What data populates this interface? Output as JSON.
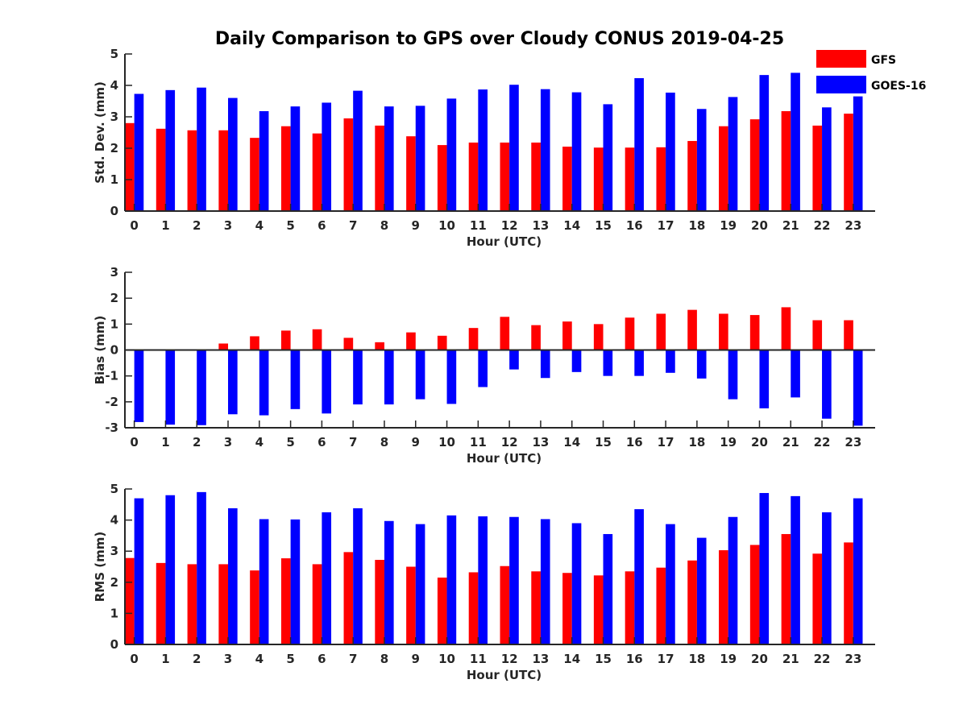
{
  "title": "Daily Comparison to GPS over Cloudy CONUS 2019-04-25",
  "colors": {
    "gfs": "#ff0000",
    "goes": "#0000ff",
    "axis": "#262626"
  },
  "legend": {
    "placement": "top-right",
    "entries": [
      "GFS",
      "GOES-16"
    ]
  },
  "chart_data": [
    {
      "type": "bar",
      "xlabel": "Hour (UTC)",
      "ylabel": "Std. Dev. (mm)",
      "ylim": [
        0,
        5
      ],
      "yticks": [
        0,
        1,
        2,
        3,
        4,
        5
      ],
      "categories": [
        "0",
        "1",
        "2",
        "3",
        "4",
        "5",
        "6",
        "7",
        "8",
        "9",
        "10",
        "11",
        "12",
        "13",
        "14",
        "15",
        "16",
        "17",
        "18",
        "19",
        "20",
        "21",
        "22",
        "23"
      ],
      "series": [
        {
          "name": "GFS",
          "values": [
            2.8,
            2.62,
            2.57,
            2.57,
            2.33,
            2.7,
            2.47,
            2.95,
            2.72,
            2.38,
            2.1,
            2.18,
            2.18,
            2.18,
            2.05,
            2.02,
            2.02,
            2.03,
            2.23,
            2.7,
            2.92,
            3.18,
            2.72,
            3.1
          ]
        },
        {
          "name": "GOES-16",
          "values": [
            3.73,
            3.85,
            3.93,
            3.6,
            3.18,
            3.33,
            3.45,
            3.83,
            3.33,
            3.35,
            3.58,
            3.87,
            4.02,
            3.88,
            3.78,
            3.4,
            4.23,
            3.77,
            3.25,
            3.63,
            4.33,
            4.4,
            3.3,
            3.65
          ]
        }
      ]
    },
    {
      "type": "bar",
      "xlabel": "Hour (UTC)",
      "ylabel": "Bias (mm)",
      "ylim": [
        -3,
        3
      ],
      "yticks": [
        -3,
        -2,
        -1,
        0,
        1,
        2,
        3
      ],
      "categories": [
        "0",
        "1",
        "2",
        "3",
        "4",
        "5",
        "6",
        "7",
        "8",
        "9",
        "10",
        "11",
        "12",
        "13",
        "14",
        "15",
        "16",
        "17",
        "18",
        "19",
        "20",
        "21",
        "22",
        "23"
      ],
      "series": [
        {
          "name": "GFS",
          "values": [
            0.0,
            -0.02,
            0.03,
            0.25,
            0.53,
            0.75,
            0.8,
            0.47,
            0.3,
            0.68,
            0.55,
            0.85,
            1.28,
            0.96,
            1.1,
            1.0,
            1.25,
            1.4,
            1.55,
            1.4,
            1.35,
            1.65,
            1.15,
            1.15
          ]
        },
        {
          "name": "GOES-16",
          "values": [
            -2.78,
            -2.88,
            -2.9,
            -2.48,
            -2.52,
            -2.28,
            -2.45,
            -2.1,
            -2.1,
            -1.9,
            -2.08,
            -1.43,
            -0.75,
            -1.08,
            -0.85,
            -1.0,
            -1.0,
            -0.88,
            -1.1,
            -1.9,
            -2.25,
            -1.83,
            -2.65,
            -2.92
          ]
        }
      ]
    },
    {
      "type": "bar",
      "xlabel": "Hour (UTC)",
      "ylabel": "RMS (mm)",
      "ylim": [
        0,
        5
      ],
      "yticks": [
        0,
        1,
        2,
        3,
        4,
        5
      ],
      "categories": [
        "0",
        "1",
        "2",
        "3",
        "4",
        "5",
        "6",
        "7",
        "8",
        "9",
        "10",
        "11",
        "12",
        "13",
        "14",
        "15",
        "16",
        "17",
        "18",
        "19",
        "20",
        "21",
        "22",
        "23"
      ],
      "series": [
        {
          "name": "GFS",
          "values": [
            2.78,
            2.62,
            2.58,
            2.58,
            2.38,
            2.77,
            2.58,
            2.97,
            2.72,
            2.5,
            2.15,
            2.32,
            2.52,
            2.35,
            2.3,
            2.22,
            2.35,
            2.47,
            2.7,
            3.03,
            3.2,
            3.55,
            2.92,
            3.28
          ]
        },
        {
          "name": "GOES-16",
          "values": [
            4.7,
            4.8,
            4.9,
            4.38,
            4.03,
            4.02,
            4.25,
            4.38,
            3.97,
            3.87,
            4.15,
            4.12,
            4.1,
            4.03,
            3.9,
            3.55,
            4.35,
            3.87,
            3.43,
            4.1,
            4.87,
            4.77,
            4.25,
            4.7
          ]
        }
      ]
    }
  ]
}
